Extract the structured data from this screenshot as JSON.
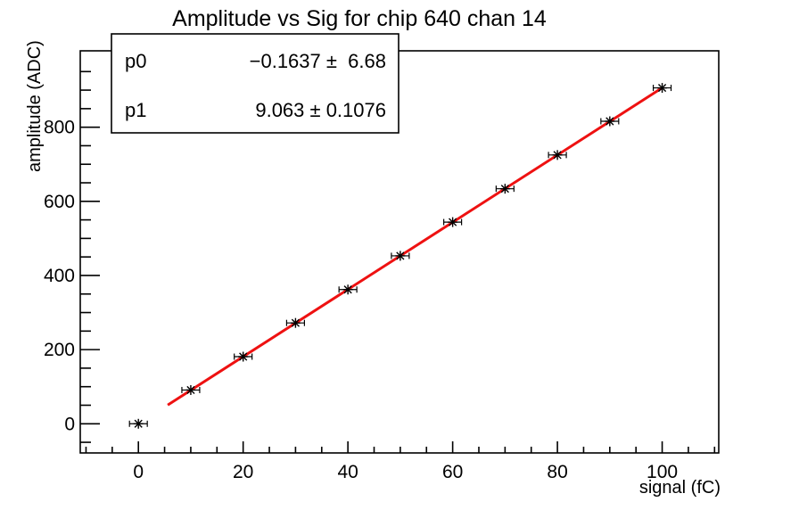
{
  "title": "Amplitude vs Sig for chip 640 chan 14",
  "stats_box": {
    "rows": [
      {
        "name": "p0",
        "value": "−0.1637 ±  6.68"
      },
      {
        "name": "p1",
        "value": "9.063 ± 0.1076"
      }
    ]
  },
  "chart_data": {
    "type": "scatter",
    "title": "Amplitude vs Sig for chip 640 chan 14",
    "xlabel": "signal (fC)",
    "ylabel": "amplitude (ADC)",
    "x": [
      0,
      10,
      20,
      30,
      40,
      50,
      60,
      70,
      80,
      90,
      100
    ],
    "y": [
      0,
      91,
      181,
      272,
      362,
      453,
      544,
      634,
      725,
      816,
      906
    ],
    "xerr": 1.7,
    "marker": "asterisk",
    "marker_color": "#000000",
    "fit": {
      "type": "linear",
      "p0": -0.1637,
      "p0_err": 6.68,
      "p1": 9.063,
      "p1_err": 0.1076,
      "range": [
        5.6,
        100
      ],
      "color": "#ee1111"
    },
    "xlim": [
      -11.1,
      110.8
    ],
    "ylim": [
      -78.7,
      1006
    ],
    "x_major_ticks": [
      0,
      20,
      40,
      60,
      80,
      100
    ],
    "x_tick_labels": [
      "0",
      "20",
      "40",
      "60",
      "80",
      "100"
    ],
    "x_minor_step": 5,
    "x_minor_range": [
      -10,
      110
    ],
    "y_major_ticks": [
      0,
      200,
      400,
      600,
      800
    ],
    "y_tick_labels": [
      "0",
      "200",
      "400",
      "600",
      "800"
    ],
    "y_minor_step": 50,
    "y_minor_range": [
      -50,
      950
    ],
    "grid": false,
    "legend": false,
    "frame_color": "#000000",
    "background_color": "#ffffff"
  }
}
